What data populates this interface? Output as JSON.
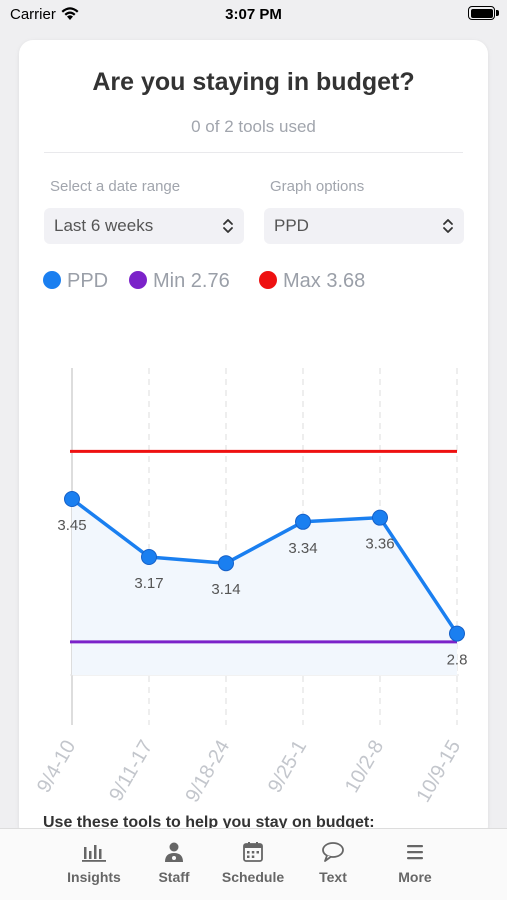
{
  "status_bar": {
    "carrier": "Carrier",
    "time": "3:07 PM"
  },
  "card": {
    "title": "Are you staying in budget?",
    "subtitle": "0 of 2 tools used",
    "date_range": {
      "label": "Select a date range",
      "value": "Last 6 weeks"
    },
    "graph_options": {
      "label": "Graph options",
      "value": "PPD"
    },
    "legend": [
      {
        "label": "PPD",
        "color": "#1a7ff0"
      },
      {
        "label": "Min 2.76",
        "color": "#7b22c9"
      },
      {
        "label": "Max 3.68",
        "color": "#ee1111"
      }
    ],
    "tools_heading": "Use these tools to help you stay on budget:"
  },
  "chart_data": {
    "type": "line",
    "categories": [
      "9/4-10",
      "9/11-17",
      "9/18-24",
      "9/25-1",
      "10/2-8",
      "10/9-15"
    ],
    "series": [
      {
        "name": "PPD",
        "values": [
          3.45,
          3.17,
          3.14,
          3.34,
          3.36,
          2.8
        ],
        "color": "#1a7ff0"
      }
    ],
    "reference_lines": [
      {
        "name": "Min 2.76",
        "value": 2.76,
        "color": "#7b22c9"
      },
      {
        "name": "Max 3.68",
        "value": 3.68,
        "color": "#ee1111"
      }
    ],
    "data_labels": [
      "3.45",
      "3.17",
      "3.14",
      "3.34",
      "3.36",
      "2.8"
    ],
    "ylim": [
      2.6,
      3.88
    ],
    "area_fill": "#f2f7fd",
    "grid": "vertical-dashed"
  },
  "tabs": [
    {
      "label": "Insights",
      "icon": "bar-chart-icon"
    },
    {
      "label": "Staff",
      "icon": "staff-icon"
    },
    {
      "label": "Schedule",
      "icon": "calendar-icon"
    },
    {
      "label": "Text",
      "icon": "chat-bubble-icon"
    },
    {
      "label": "More",
      "icon": "menu-icon"
    }
  ]
}
